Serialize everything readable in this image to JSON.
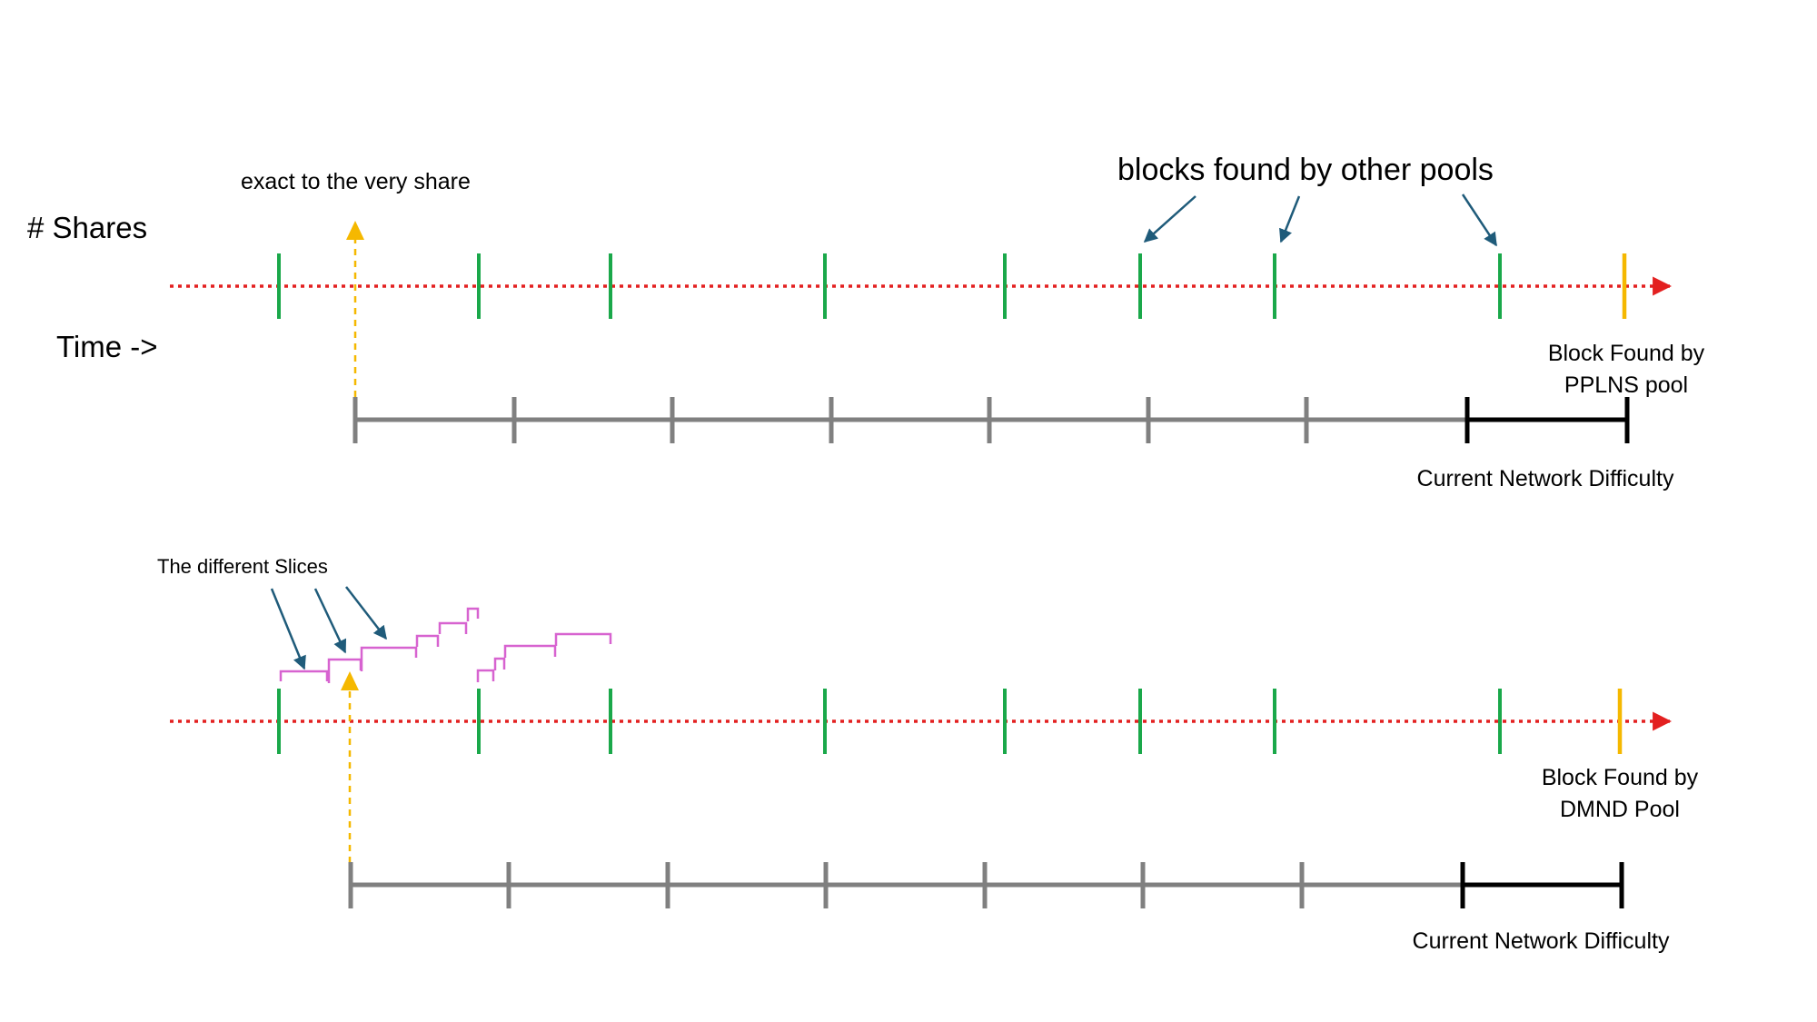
{
  "labels": {
    "shares": "# Shares",
    "time": "Time ->",
    "exact_share": "exact to the very share",
    "other_pools": "blocks found by other pools",
    "pplns_block_line1": "Block Found by",
    "pplns_block_line2": "PPLNS pool",
    "difficulty_top": "Current Network Difficulty",
    "slices": "The different Slices",
    "dmnd_block_line1": "Block Found by",
    "dmnd_block_line2": "DMND Pool",
    "difficulty_bottom": "Current Network Difficulty"
  },
  "colors": {
    "timeline": "#e32020",
    "block_other": "#1aa84a",
    "block_found": "#f5b800",
    "window": "#808080",
    "difficulty": "#000000",
    "annotation_arrow": "#1f5b7a",
    "slice": "#d763d0"
  },
  "counts": {
    "other_pool_blocks": 8,
    "window_segments_gray": 7,
    "window_segments_black": 1
  }
}
